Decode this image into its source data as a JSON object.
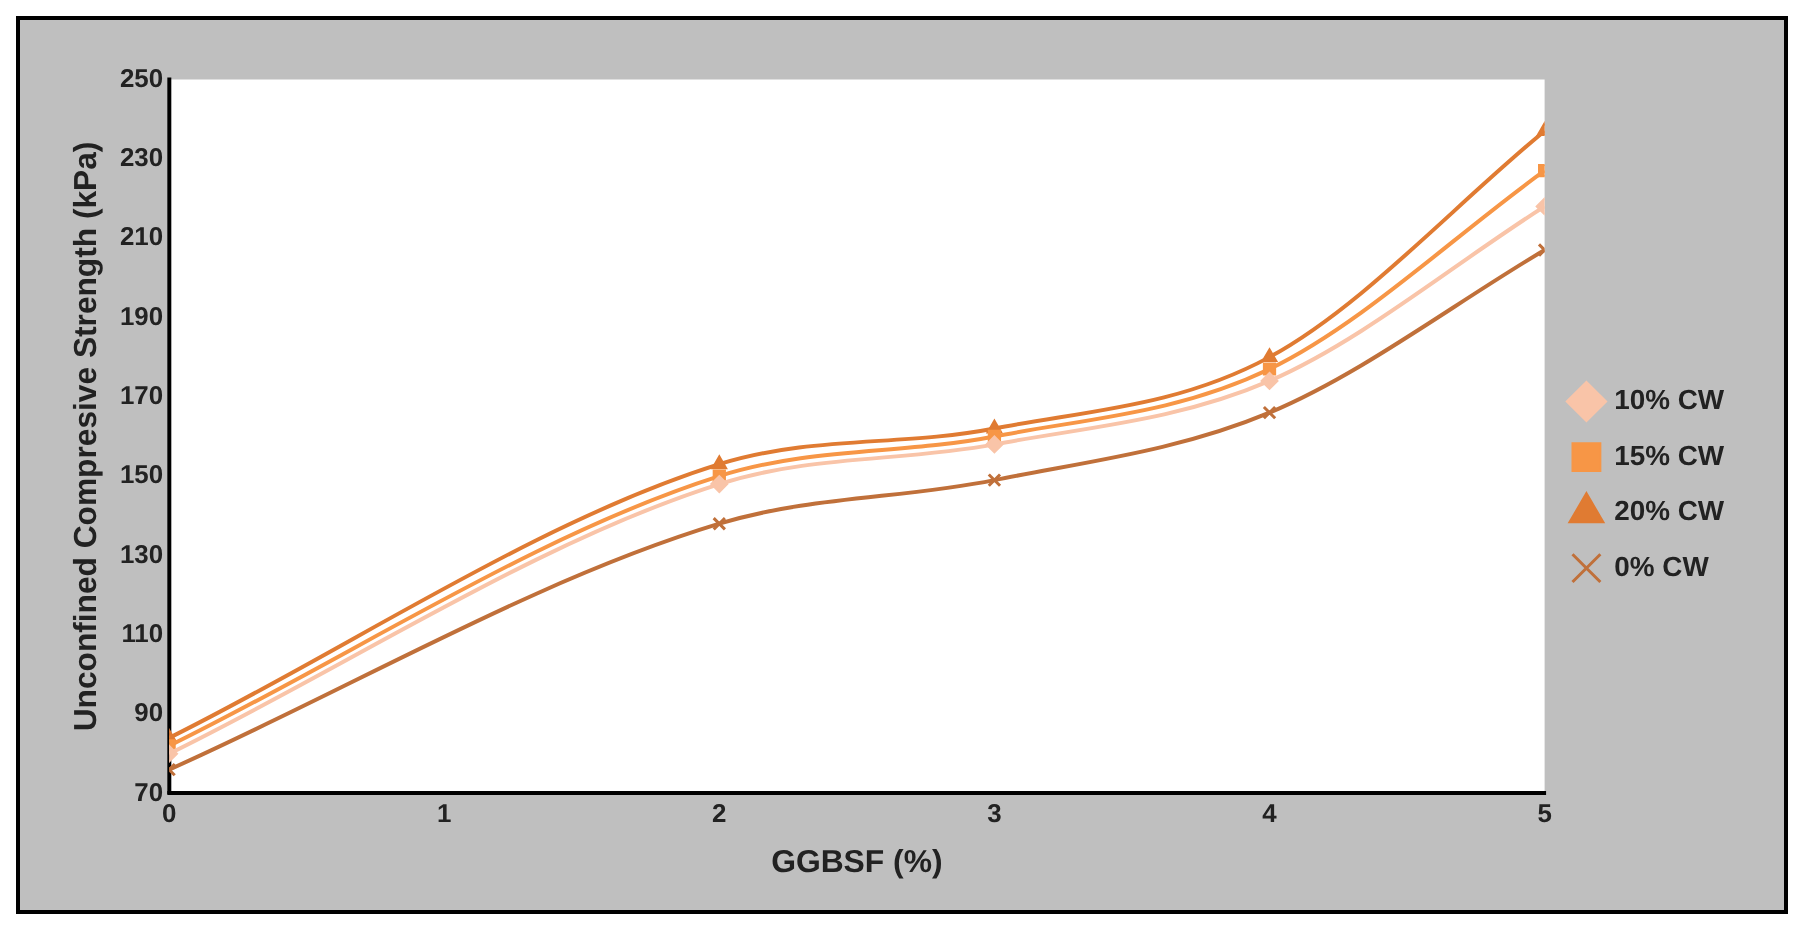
{
  "chart_data": {
    "type": "line",
    "xlabel": "GGBSF (%)",
    "ylabel": "Unconfined Compresive Strength (kPa)",
    "x": [
      0,
      2,
      3,
      4,
      5
    ],
    "xlim": [
      0,
      5
    ],
    "xticks": [
      0,
      1,
      2,
      3,
      4,
      5
    ],
    "ylim": [
      70,
      250
    ],
    "yticks": [
      70,
      90,
      110,
      130,
      150,
      170,
      190,
      210,
      230,
      250
    ],
    "grid": false,
    "legend": "right",
    "series": [
      {
        "name": "10% CW",
        "color": "#f9c4a8",
        "marker": "diamond",
        "values": [
          80,
          148,
          158,
          174,
          218
        ]
      },
      {
        "name": "15% CW",
        "color": "#f79646",
        "marker": "square",
        "values": [
          82,
          150,
          160,
          177,
          227
        ]
      },
      {
        "name": "20% CW",
        "color": "#e07b32",
        "marker": "triangle",
        "values": [
          84,
          153,
          162,
          180,
          237
        ]
      },
      {
        "name": "0% CW",
        "color": "#c0703a",
        "marker": "cross",
        "values": [
          76,
          138,
          149,
          166,
          207
        ]
      }
    ]
  }
}
